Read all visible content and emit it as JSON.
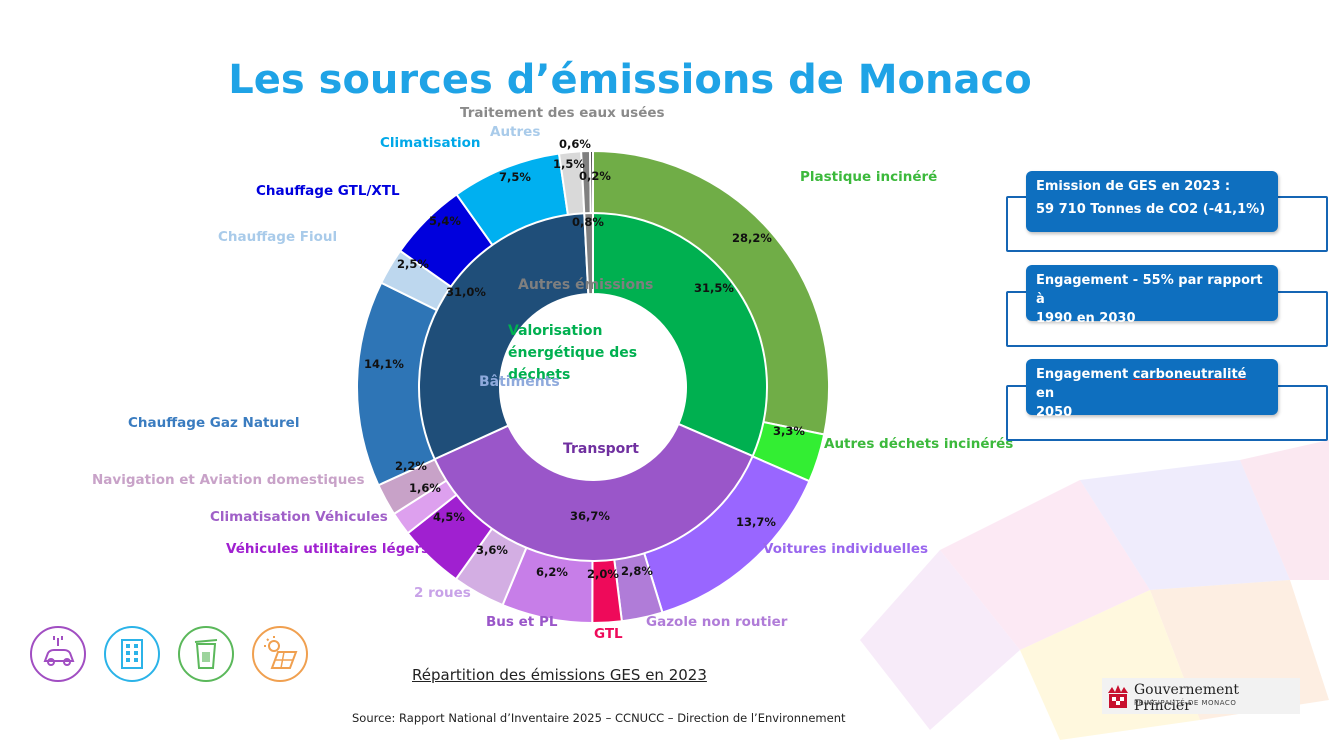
{
  "header": {
    "title": "Les sources d’émissions de Monaco"
  },
  "chart_data": {
    "type": "pie",
    "title": "Les sources d’émissions de Monaco",
    "caption": "Répartition des émissions GES en 2023",
    "inner_ring": [
      {
        "name": "Valorisation énergétique des déchets",
        "value": 31.5,
        "label": "31,5%",
        "color": "#00b050"
      },
      {
        "name": "Transport",
        "value": 36.7,
        "label": "36,7%",
        "color": "#9a56c9"
      },
      {
        "name": "Bâtiments",
        "value": 31.0,
        "label": "31,0%",
        "color": "#1f4e79"
      },
      {
        "name": "Autres émissions",
        "value": 0.8,
        "label": "0,8%",
        "color": "#808080"
      }
    ],
    "outer_ring": [
      {
        "name": "Plastique incinéré",
        "value": 28.2,
        "label": "28,2%",
        "color": "#70ad47"
      },
      {
        "name": "Autres déchets incinérés",
        "value": 3.3,
        "label": "3,3%",
        "color": "#33ee33"
      },
      {
        "name": "Voitures individuelles",
        "value": 13.7,
        "label": "13,7%",
        "color": "#9966ff"
      },
      {
        "name": "Gazole non routier",
        "value": 2.8,
        "label": "2,8%",
        "color": "#b07cd8"
      },
      {
        "name": "GTL",
        "value": 2.0,
        "label": "2,0%",
        "color": "#ee0a5a"
      },
      {
        "name": "Bus et PL",
        "value": 6.2,
        "label": "6,2%",
        "color": "#c77ee8"
      },
      {
        "name": "2 roues",
        "value": 3.6,
        "label": "3,6%",
        "color": "#d3aee3"
      },
      {
        "name": "Véhicules utilitaires légers",
        "value": 4.5,
        "label": "4,5%",
        "color": "#a020d0"
      },
      {
        "name": "Climatisation Véhicules",
        "value": 1.6,
        "label": "1,6%",
        "color": "#dda0ee"
      },
      {
        "name": "Navigation et Aviation domestiques",
        "value": 2.2,
        "label": "2,2%",
        "color": "#c8a2c8"
      },
      {
        "name": "Chauffage Gaz Naturel",
        "value": 14.1,
        "label": "14,1%",
        "color": "#2e75b6"
      },
      {
        "name": "Chauffage Fioul",
        "value": 2.5,
        "label": "2,5%",
        "color": "#bdd7ee"
      },
      {
        "name": "Chauffage GTL/XTL",
        "value": 5.4,
        "label": "5,4%",
        "color": "#0000dd"
      },
      {
        "name": "Climatisation",
        "value": 7.5,
        "label": "7,5%",
        "color": "#00b0f0"
      },
      {
        "name": "Autres",
        "value": 1.5,
        "label": "1,5%",
        "color": "#d9d9d9"
      },
      {
        "name": "Traitement des eaux usées",
        "value": 0.6,
        "label": "0,6%",
        "color": "#808080"
      },
      {
        "name": "",
        "value": 0.2,
        "label": "0,2%",
        "color": "#404040"
      }
    ],
    "category_labels": {
      "Plastique incinéré": "#3cb93c",
      "Autres déchets incinérés": "#3cb93c",
      "Voitures individuelles": "#9966ee",
      "Gazole non routier": "#b07cd8",
      "GTL": "#ee0a5a",
      "Bus et PL": "#9a56c9",
      "2 roues": "#c8a2e8",
      "Véhicules utilitaires légers": "#a020d0",
      "Climatisation Véhicules": "#a060c8",
      "Navigation et Aviation domestiques": "#c8a2c8",
      "Chauffage Gaz Naturel": "#3a7cc0",
      "Chauffage Fioul": "#a9cbea",
      "Chauffage GTL/XTL": "#0000dd",
      "Climatisation": "#00a8e8",
      "Autres": "#a9cbea",
      "Traitement des eaux usées": "#8a8a8a"
    },
    "legend": "none"
  },
  "info": {
    "emission_line1": "Emission de GES en 2023 :",
    "emission_line2": "59 710 Tonnes de CO2  (-41,1%)",
    "engagement1_line1": "Engagement - 55% par rapport à",
    "engagement1_line2": "1990 en 2030",
    "engagement2_prefix": "Engagement ",
    "engagement2_word": "carboneutralité",
    "engagement2_suffix": " en",
    "engagement2_line2": "2050"
  },
  "footer": {
    "caption": "Répartition des émissions GES en 2023",
    "source": "Source: Rapport National d’Inventaire 2025 – CCNUCC – Direction de l’Environnement",
    "gov_name": "Gouvernement Princier",
    "gov_sub": "PRINCIPAUTÉ DE MONACO"
  },
  "icons": [
    "electric-car-icon",
    "building-icon",
    "trash-bin-icon",
    "solar-panel-icon"
  ]
}
